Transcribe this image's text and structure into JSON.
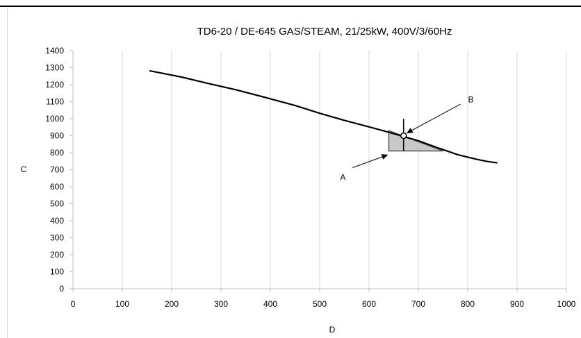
{
  "chart_data": {
    "type": "line",
    "title": "TD6-20 / DE-645 GAS/STEAM, 21/25kW, 400V/3/60Hz",
    "xlabel": "D",
    "ylabel": "C",
    "xlim": [
      0,
      1000
    ],
    "ylim": [
      0,
      1400
    ],
    "xticks": [
      "0",
      "100",
      "200",
      "300",
      "400",
      "500",
      "600",
      "700",
      "800",
      "900",
      "1000"
    ],
    "yticks": [
      "0",
      "100",
      "200",
      "300",
      "400",
      "500",
      "600",
      "700",
      "800",
      "900",
      "1000",
      "1100",
      "1200",
      "1300",
      "1400"
    ],
    "grid": "vertical",
    "series": [
      {
        "x": [
          155,
          220,
          270,
          330,
          390,
          450,
          500,
          550,
          600,
          640,
          670,
          700,
          740,
          780,
          820,
          840,
          860
        ],
        "y": [
          1282,
          1245,
          1210,
          1170,
          1125,
          1078,
          1032,
          990,
          952,
          920,
          895,
          870,
          828,
          788,
          760,
          748,
          740
        ],
        "color": "#000000"
      }
    ],
    "annotations": [
      {
        "label": "A",
        "shape": "shaded-triangle",
        "vertices": [
          [
            640,
            930
          ],
          [
            640,
            810
          ],
          [
            750,
            810
          ]
        ],
        "vertical_segment": [
          [
            670,
            810
          ],
          [
            670,
            1000
          ]
        ],
        "text_at": [
          547,
          655
        ],
        "arrow_to": [
          640,
          795
        ],
        "fill": "#c8c8c8"
      },
      {
        "label": "B",
        "shape": "open-circle",
        "point": [
          670,
          900
        ],
        "text_at": [
          795,
          1095
        ],
        "arrow_from": [
          785,
          1085
        ]
      }
    ]
  }
}
